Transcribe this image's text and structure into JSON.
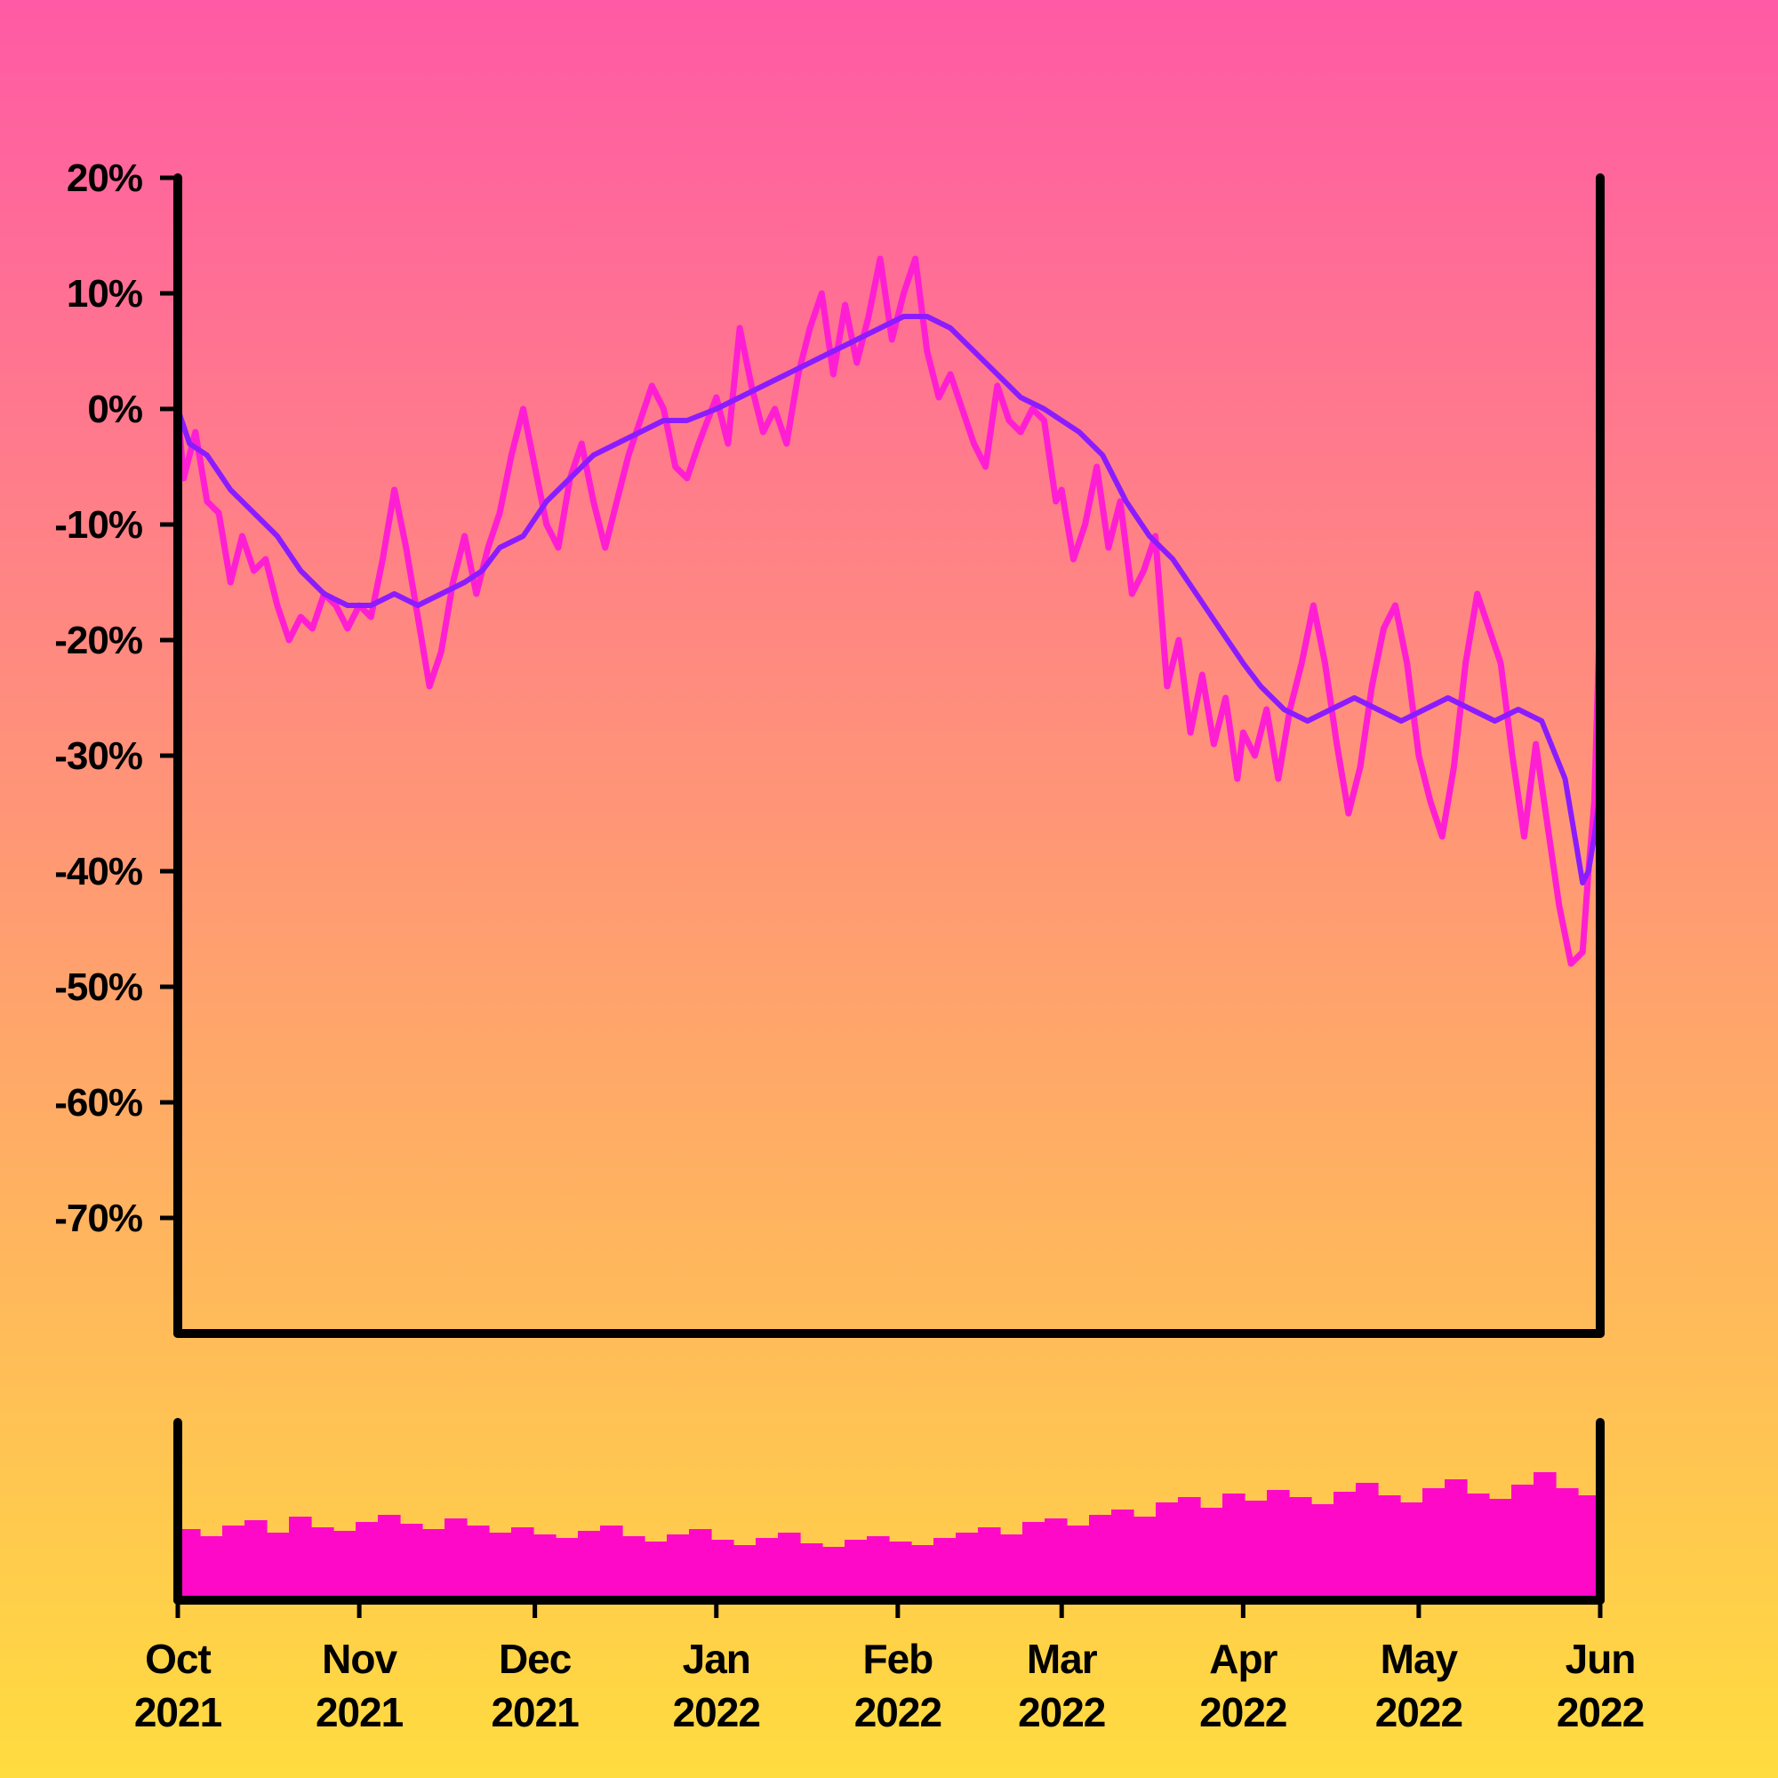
{
  "chart_data": [
    {
      "type": "line",
      "title": "",
      "xlabel": "",
      "ylabel": "",
      "x_range": [
        "2021-10-01",
        "2022-06-01"
      ],
      "ylim": [
        -80,
        20
      ],
      "y_ticks": [
        20,
        10,
        0,
        -10,
        -20,
        -30,
        -40,
        -50,
        -60,
        -70
      ],
      "y_tick_labels": [
        "20%",
        "10%",
        "0%",
        "-10%",
        "-20%",
        "-30%",
        "-40%",
        "-50%",
        "-60%",
        "-70%"
      ],
      "x_ticks": [
        "2021-10-01",
        "2021-11-01",
        "2021-12-01",
        "2022-01-01",
        "2022-02-01",
        "2022-03-01",
        "2022-04-01",
        "2022-05-01",
        "2022-06-01"
      ],
      "x_tick_labels": [
        {
          "month": "Oct",
          "year": "2021"
        },
        {
          "month": "Nov",
          "year": "2021"
        },
        {
          "month": "Dec",
          "year": "2021"
        },
        {
          "month": "Jan",
          "year": "2022"
        },
        {
          "month": "Feb",
          "year": "2022"
        },
        {
          "month": "Mar",
          "year": "2022"
        },
        {
          "month": "Apr",
          "year": "2022"
        },
        {
          "month": "May",
          "year": "2022"
        },
        {
          "month": "Jun",
          "year": "2022"
        }
      ],
      "grid": false,
      "legend": "none",
      "series": [
        {
          "color": "#ff1fd2",
          "points": [
            [
              "2021-10-01",
              0
            ],
            [
              "2021-10-02",
              -6
            ],
            [
              "2021-10-04",
              -2
            ],
            [
              "2021-10-06",
              -8
            ],
            [
              "2021-10-08",
              -9
            ],
            [
              "2021-10-10",
              -15
            ],
            [
              "2021-10-12",
              -11
            ],
            [
              "2021-10-14",
              -14
            ],
            [
              "2021-10-16",
              -13
            ],
            [
              "2021-10-18",
              -17
            ],
            [
              "2021-10-20",
              -20
            ],
            [
              "2021-10-22",
              -18
            ],
            [
              "2021-10-24",
              -19
            ],
            [
              "2021-10-26",
              -16
            ],
            [
              "2021-10-28",
              -17
            ],
            [
              "2021-10-30",
              -19
            ],
            [
              "2021-11-01",
              -17
            ],
            [
              "2021-11-03",
              -18
            ],
            [
              "2021-11-05",
              -13
            ],
            [
              "2021-11-07",
              -7
            ],
            [
              "2021-11-09",
              -12
            ],
            [
              "2021-11-11",
              -18
            ],
            [
              "2021-11-13",
              -24
            ],
            [
              "2021-11-15",
              -21
            ],
            [
              "2021-11-17",
              -15
            ],
            [
              "2021-11-19",
              -11
            ],
            [
              "2021-11-21",
              -16
            ],
            [
              "2021-11-23",
              -12
            ],
            [
              "2021-11-25",
              -9
            ],
            [
              "2021-11-27",
              -4
            ],
            [
              "2021-11-29",
              0
            ],
            [
              "2021-12-01",
              -5
            ],
            [
              "2021-12-03",
              -10
            ],
            [
              "2021-12-05",
              -12
            ],
            [
              "2021-12-07",
              -6
            ],
            [
              "2021-12-09",
              -3
            ],
            [
              "2021-12-11",
              -8
            ],
            [
              "2021-12-13",
              -12
            ],
            [
              "2021-12-15",
              -8
            ],
            [
              "2021-12-17",
              -4
            ],
            [
              "2021-12-19",
              -1
            ],
            [
              "2021-12-21",
              2
            ],
            [
              "2021-12-23",
              0
            ],
            [
              "2021-12-25",
              -5
            ],
            [
              "2021-12-27",
              -6
            ],
            [
              "2021-12-29",
              -3
            ],
            [
              "2022-01-01",
              1
            ],
            [
              "2022-01-03",
              -3
            ],
            [
              "2022-01-05",
              7
            ],
            [
              "2022-01-07",
              2
            ],
            [
              "2022-01-09",
              -2
            ],
            [
              "2022-01-11",
              0
            ],
            [
              "2022-01-13",
              -3
            ],
            [
              "2022-01-15",
              3
            ],
            [
              "2022-01-17",
              7
            ],
            [
              "2022-01-19",
              10
            ],
            [
              "2022-01-21",
              3
            ],
            [
              "2022-01-23",
              9
            ],
            [
              "2022-01-25",
              4
            ],
            [
              "2022-01-27",
              8
            ],
            [
              "2022-01-29",
              13
            ],
            [
              "2022-01-31",
              6
            ],
            [
              "2022-02-02",
              10
            ],
            [
              "2022-02-04",
              13
            ],
            [
              "2022-02-06",
              5
            ],
            [
              "2022-02-08",
              1
            ],
            [
              "2022-02-10",
              3
            ],
            [
              "2022-02-12",
              0
            ],
            [
              "2022-02-14",
              -3
            ],
            [
              "2022-02-16",
              -5
            ],
            [
              "2022-02-18",
              2
            ],
            [
              "2022-02-20",
              -1
            ],
            [
              "2022-02-22",
              -2
            ],
            [
              "2022-02-24",
              0
            ],
            [
              "2022-02-26",
              -1
            ],
            [
              "2022-02-28",
              -8
            ],
            [
              "2022-03-01",
              -7
            ],
            [
              "2022-03-03",
              -13
            ],
            [
              "2022-03-05",
              -10
            ],
            [
              "2022-03-07",
              -5
            ],
            [
              "2022-03-09",
              -12
            ],
            [
              "2022-03-11",
              -8
            ],
            [
              "2022-03-13",
              -16
            ],
            [
              "2022-03-15",
              -14
            ],
            [
              "2022-03-17",
              -11
            ],
            [
              "2022-03-19",
              -24
            ],
            [
              "2022-03-21",
              -20
            ],
            [
              "2022-03-23",
              -28
            ],
            [
              "2022-03-25",
              -23
            ],
            [
              "2022-03-27",
              -29
            ],
            [
              "2022-03-29",
              -25
            ],
            [
              "2022-03-31",
              -32
            ],
            [
              "2022-04-01",
              -28
            ],
            [
              "2022-04-03",
              -30
            ],
            [
              "2022-04-05",
              -26
            ],
            [
              "2022-04-07",
              -32
            ],
            [
              "2022-04-09",
              -26
            ],
            [
              "2022-04-11",
              -22
            ],
            [
              "2022-04-13",
              -17
            ],
            [
              "2022-04-15",
              -22
            ],
            [
              "2022-04-17",
              -29
            ],
            [
              "2022-04-19",
              -35
            ],
            [
              "2022-04-21",
              -31
            ],
            [
              "2022-04-23",
              -24
            ],
            [
              "2022-04-25",
              -19
            ],
            [
              "2022-04-27",
              -17
            ],
            [
              "2022-04-29",
              -22
            ],
            [
              "2022-05-01",
              -30
            ],
            [
              "2022-05-03",
              -34
            ],
            [
              "2022-05-05",
              -37
            ],
            [
              "2022-05-07",
              -31
            ],
            [
              "2022-05-09",
              -22
            ],
            [
              "2022-05-11",
              -16
            ],
            [
              "2022-05-13",
              -19
            ],
            [
              "2022-05-15",
              -22
            ],
            [
              "2022-05-17",
              -30
            ],
            [
              "2022-05-19",
              -37
            ],
            [
              "2022-05-21",
              -29
            ],
            [
              "2022-05-23",
              -36
            ],
            [
              "2022-05-25",
              -43
            ],
            [
              "2022-05-27",
              -48
            ],
            [
              "2022-05-29",
              -47
            ],
            [
              "2022-05-30",
              -40
            ],
            [
              "2022-05-31",
              -34
            ],
            [
              "2022-06-01",
              -17
            ]
          ]
        },
        {
          "color": "#8c1cff",
          "points": [
            [
              "2021-10-01",
              0
            ],
            [
              "2021-10-03",
              -3
            ],
            [
              "2021-10-06",
              -4
            ],
            [
              "2021-10-10",
              -7
            ],
            [
              "2021-10-14",
              -9
            ],
            [
              "2021-10-18",
              -11
            ],
            [
              "2021-10-22",
              -14
            ],
            [
              "2021-10-26",
              -16
            ],
            [
              "2021-10-30",
              -17
            ],
            [
              "2021-11-03",
              -17
            ],
            [
              "2021-11-07",
              -16
            ],
            [
              "2021-11-11",
              -17
            ],
            [
              "2021-11-15",
              -16
            ],
            [
              "2021-11-19",
              -15
            ],
            [
              "2021-11-22",
              -14
            ],
            [
              "2021-11-25",
              -12
            ],
            [
              "2021-11-29",
              -11
            ],
            [
              "2021-12-03",
              -8
            ],
            [
              "2021-12-07",
              -6
            ],
            [
              "2021-12-11",
              -4
            ],
            [
              "2021-12-15",
              -3
            ],
            [
              "2021-12-19",
              -2
            ],
            [
              "2021-12-23",
              -1
            ],
            [
              "2021-12-27",
              -1
            ],
            [
              "2022-01-01",
              0
            ],
            [
              "2022-01-05",
              1
            ],
            [
              "2022-01-09",
              2
            ],
            [
              "2022-01-13",
              3
            ],
            [
              "2022-01-17",
              4
            ],
            [
              "2022-01-21",
              5
            ],
            [
              "2022-01-25",
              6
            ],
            [
              "2022-01-29",
              7
            ],
            [
              "2022-02-02",
              8
            ],
            [
              "2022-02-06",
              8
            ],
            [
              "2022-02-10",
              7
            ],
            [
              "2022-02-14",
              5
            ],
            [
              "2022-02-18",
              3
            ],
            [
              "2022-02-22",
              1
            ],
            [
              "2022-02-26",
              0
            ],
            [
              "2022-03-01",
              -1
            ],
            [
              "2022-03-04",
              -2
            ],
            [
              "2022-03-08",
              -4
            ],
            [
              "2022-03-12",
              -8
            ],
            [
              "2022-03-16",
              -11
            ],
            [
              "2022-03-20",
              -13
            ],
            [
              "2022-03-24",
              -16
            ],
            [
              "2022-03-28",
              -19
            ],
            [
              "2022-04-01",
              -22
            ],
            [
              "2022-04-04",
              -24
            ],
            [
              "2022-04-08",
              -26
            ],
            [
              "2022-04-12",
              -27
            ],
            [
              "2022-04-16",
              -26
            ],
            [
              "2022-04-20",
              -25
            ],
            [
              "2022-04-24",
              -26
            ],
            [
              "2022-04-28",
              -27
            ],
            [
              "2022-05-02",
              -26
            ],
            [
              "2022-05-06",
              -25
            ],
            [
              "2022-05-10",
              -26
            ],
            [
              "2022-05-14",
              -27
            ],
            [
              "2022-05-18",
              -26
            ],
            [
              "2022-05-22",
              -27
            ],
            [
              "2022-05-26",
              -32
            ],
            [
              "2022-05-28",
              -38
            ],
            [
              "2022-05-29",
              -41
            ],
            [
              "2022-05-30",
              -40
            ],
            [
              "2022-05-31",
              -37
            ],
            [
              "2022-06-01",
              -33
            ]
          ]
        }
      ]
    },
    {
      "type": "bar",
      "title": "",
      "xlabel": "",
      "ylabel": "",
      "x_range": [
        "2021-10-01",
        "2022-06-01"
      ],
      "ylim": [
        0,
        1
      ],
      "color": "#ff09c8",
      "grid": false,
      "legend": "none",
      "values": [
        0.4,
        0.36,
        0.42,
        0.45,
        0.38,
        0.47,
        0.41,
        0.39,
        0.44,
        0.48,
        0.43,
        0.4,
        0.46,
        0.42,
        0.38,
        0.41,
        0.37,
        0.35,
        0.39,
        0.42,
        0.36,
        0.33,
        0.37,
        0.4,
        0.34,
        0.31,
        0.35,
        0.38,
        0.32,
        0.3,
        0.34,
        0.36,
        0.33,
        0.31,
        0.35,
        0.38,
        0.41,
        0.37,
        0.44,
        0.46,
        0.42,
        0.48,
        0.51,
        0.47,
        0.55,
        0.58,
        0.52,
        0.6,
        0.56,
        0.62,
        0.58,
        0.54,
        0.61,
        0.66,
        0.59,
        0.55,
        0.63,
        0.68,
        0.6,
        0.57,
        0.65,
        0.72,
        0.63,
        0.59
      ]
    }
  ]
}
